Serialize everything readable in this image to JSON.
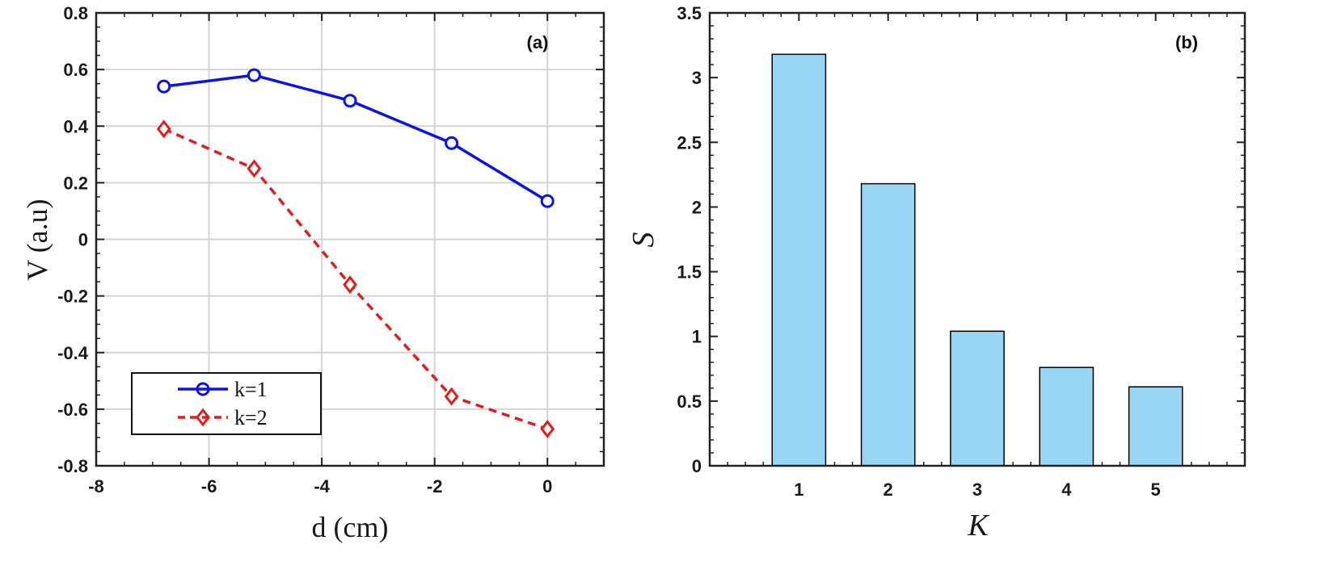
{
  "chart_data": [
    {
      "type": "line",
      "panel_label": "(a)",
      "xlabel": "d (cm)",
      "ylabel": "V (a.u)",
      "xlim": [
        -8,
        1
      ],
      "ylim": [
        -0.8,
        0.8
      ],
      "x_ticks": [
        -8,
        -6,
        -4,
        -2,
        0
      ],
      "x_tick_labels": [
        "-8",
        "-6",
        "-4",
        "-2",
        "0"
      ],
      "y_ticks": [
        -0.8,
        -0.6,
        -0.4,
        -0.2,
        0,
        0.2,
        0.4,
        0.6,
        0.8
      ],
      "y_tick_labels": [
        "-0.8",
        "-0.6",
        "-0.4",
        "-0.2",
        "0",
        "0.2",
        "0.4",
        "0.6",
        "0.8"
      ],
      "grid": true,
      "legend_position": "bottom-left",
      "series": [
        {
          "name": "k=1",
          "color": "#0a14e6",
          "marker": "circle",
          "line_style": "solid",
          "x": [
            -6.8,
            -5.2,
            -3.5,
            -1.7,
            0.0
          ],
          "y": [
            0.54,
            0.58,
            0.49,
            0.34,
            0.135
          ]
        },
        {
          "name": "k=2",
          "color": "#e21d1d",
          "marker": "diamond",
          "line_style": "dashed",
          "x": [
            -6.8,
            -5.2,
            -3.5,
            -1.7,
            0.0
          ],
          "y": [
            0.39,
            0.25,
            -0.16,
            -0.555,
            -0.67
          ]
        }
      ]
    },
    {
      "type": "bar",
      "panel_label": "(b)",
      "xlabel": "K",
      "ylabel": "S",
      "xlim": [
        0,
        6
      ],
      "ylim": [
        0,
        3.5
      ],
      "categories": [
        "1",
        "2",
        "3",
        "4",
        "5"
      ],
      "values": [
        3.18,
        2.18,
        1.04,
        0.76,
        0.61
      ],
      "y_ticks": [
        0,
        0.5,
        1,
        1.5,
        2,
        2.5,
        3,
        3.5
      ],
      "y_tick_labels": [
        "0",
        "0.5",
        "1",
        "1.5",
        "2",
        "2.5",
        "3",
        "3.5"
      ],
      "bar_color": "#98d6f3",
      "bar_edge_color": "#000000",
      "grid": false
    }
  ]
}
